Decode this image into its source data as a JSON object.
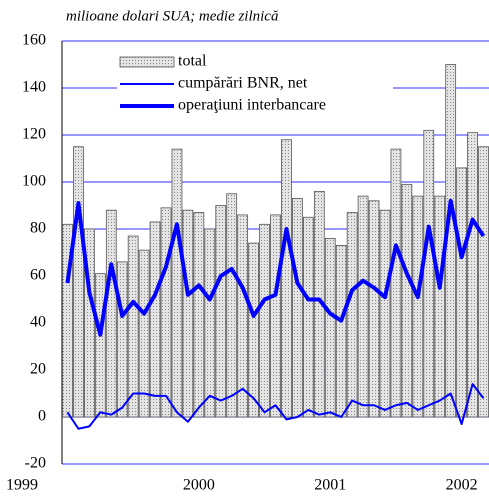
{
  "chart_data": {
    "type": "bar_line",
    "subtitle": "milioane dolari SUA; medie zilnică",
    "categories": [
      "1999",
      null,
      null,
      null,
      null,
      null,
      null,
      null,
      null,
      null,
      null,
      null,
      "2000",
      null,
      null,
      null,
      null,
      null,
      null,
      null,
      null,
      null,
      null,
      null,
      "2001",
      null,
      null,
      null,
      null,
      null,
      null,
      null,
      null,
      null,
      null,
      null,
      "2002",
      null,
      null
    ],
    "series": [
      {
        "name": "total",
        "color": "#d0d0d0",
        "kind": "bar",
        "values": [
          82,
          115,
          80,
          61,
          88,
          66,
          77,
          71,
          83,
          89,
          114,
          88,
          87,
          80,
          90,
          95,
          86,
          74,
          82,
          86,
          118,
          93,
          85,
          96,
          76,
          73,
          87,
          94,
          92,
          88,
          114,
          99,
          94,
          122,
          94,
          150,
          106,
          121,
          115
        ]
      },
      {
        "name": "cumpărări BNR, net",
        "color": "#0000ff",
        "kind": "line",
        "values": [
          2,
          -5,
          -4,
          2,
          1,
          4,
          10,
          10,
          9,
          9,
          2,
          -2,
          4,
          9,
          7,
          9,
          12,
          8,
          2,
          5,
          -1,
          0,
          3,
          1,
          2,
          0,
          7,
          5,
          5,
          3,
          5,
          6,
          3,
          5,
          7,
          10,
          -3,
          14,
          8
        ]
      },
      {
        "name": "operaţiuni interbancare",
        "color": "#0000ff",
        "kind": "thick-line",
        "values": [
          57,
          91,
          53,
          35,
          65,
          43,
          49,
          44,
          52,
          64,
          82,
          52,
          56,
          50,
          60,
          63,
          55,
          43,
          50,
          52,
          80,
          57,
          50,
          50,
          44,
          41,
          54,
          58,
          55,
          51,
          73,
          61,
          51,
          81,
          55,
          92,
          68,
          84,
          77
        ]
      }
    ],
    "ylim": [
      -20,
      160
    ],
    "yticks": [
      -20,
      0,
      20,
      40,
      60,
      80,
      100,
      120,
      140,
      160
    ],
    "grid": true
  }
}
